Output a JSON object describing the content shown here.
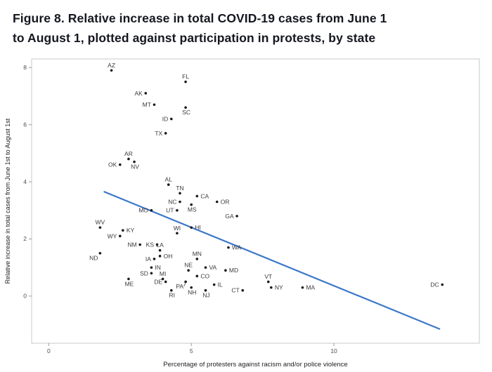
{
  "title": {
    "line1": "Figure 8. Relative increase in total COVID-19 cases from June 1",
    "line2": "to August 1, plotted against participation in protests, by state"
  },
  "chart_data": {
    "type": "scatter",
    "title": "Figure 8. Relative increase in total COVID-19 cases from June 1 to August 1, plotted against participation in protests, by state",
    "xlabel": "Percentage of protesters against racism and/or police violence",
    "ylabel": "Relative increase in total cases from June 1st to August 1st",
    "xlim": [
      -0.6,
      15.1
    ],
    "ylim": [
      -1.65,
      8.3
    ],
    "x_ticks": [
      0,
      5,
      10
    ],
    "y_ticks": [
      0,
      2,
      4,
      6,
      8
    ],
    "grid": false,
    "legend": "none",
    "point_color": "#1a1a1a",
    "label_color": "#3a3a3a",
    "tick_color": "#4d4d4d",
    "axis_title_color": "#222222",
    "panel_border_color": "#c8c8c8",
    "trend_color": "#3b78c8",
    "trend_line": {
      "x1": 1.95,
      "y1": 3.65,
      "x2": 13.7,
      "y2": -1.15
    },
    "points": [
      {
        "state": "AZ",
        "x": 2.2,
        "y": 7.9,
        "anchor": "above"
      },
      {
        "state": "FL",
        "x": 4.8,
        "y": 7.5,
        "anchor": "above"
      },
      {
        "state": "AK",
        "x": 3.4,
        "y": 7.1,
        "anchor": "left"
      },
      {
        "state": "MT",
        "x": 3.7,
        "y": 6.7,
        "anchor": "left"
      },
      {
        "state": "SC",
        "x": 4.8,
        "y": 6.6,
        "anchor": "below"
      },
      {
        "state": "ID",
        "x": 4.3,
        "y": 6.2,
        "anchor": "left"
      },
      {
        "state": "TX",
        "x": 4.1,
        "y": 5.7,
        "anchor": "left"
      },
      {
        "state": "AR",
        "x": 2.8,
        "y": 4.8,
        "anchor": "above"
      },
      {
        "state": "OK",
        "x": 2.5,
        "y": 4.6,
        "anchor": "left"
      },
      {
        "state": "NV",
        "x": 3.0,
        "y": 4.7,
        "anchor": "below"
      },
      {
        "state": "AL",
        "x": 4.2,
        "y": 3.9,
        "anchor": "above"
      },
      {
        "state": "TN",
        "x": 4.6,
        "y": 3.6,
        "anchor": "above"
      },
      {
        "state": "CA",
        "x": 5.2,
        "y": 3.5,
        "anchor": "right"
      },
      {
        "state": "NC",
        "x": 4.6,
        "y": 3.3,
        "anchor": "left"
      },
      {
        "state": "OR",
        "x": 5.9,
        "y": 3.3,
        "anchor": "right"
      },
      {
        "state": "MO",
        "x": 3.6,
        "y": 3.0,
        "anchor": "left"
      },
      {
        "state": "UT",
        "x": 4.5,
        "y": 3.0,
        "anchor": "left"
      },
      {
        "state": "MS",
        "x": 5.0,
        "y": 3.2,
        "anchor": "below"
      },
      {
        "state": "GA",
        "x": 6.6,
        "y": 2.8,
        "anchor": "left"
      },
      {
        "state": "HI",
        "x": 5.0,
        "y": 2.4,
        "anchor": "right"
      },
      {
        "state": "WV",
        "x": 1.8,
        "y": 2.4,
        "anchor": "above"
      },
      {
        "state": "KY",
        "x": 2.6,
        "y": 2.3,
        "anchor": "right"
      },
      {
        "state": "WY",
        "x": 2.5,
        "y": 2.1,
        "anchor": "left"
      },
      {
        "state": "WI",
        "x": 4.5,
        "y": 2.2,
        "anchor": "above"
      },
      {
        "state": "NM",
        "x": 3.2,
        "y": 1.8,
        "anchor": "left"
      },
      {
        "state": "KS",
        "x": 3.8,
        "y": 1.8,
        "anchor": "left"
      },
      {
        "state": "LA",
        "x": 3.9,
        "y": 1.6,
        "anchor": "above"
      },
      {
        "state": "WA",
        "x": 6.3,
        "y": 1.7,
        "anchor": "right"
      },
      {
        "state": "ND",
        "x": 1.8,
        "y": 1.5,
        "anchor": "below-left"
      },
      {
        "state": "OH",
        "x": 3.9,
        "y": 1.4,
        "anchor": "right"
      },
      {
        "state": "IA",
        "x": 3.7,
        "y": 1.3,
        "anchor": "left"
      },
      {
        "state": "MN",
        "x": 5.2,
        "y": 1.3,
        "anchor": "above"
      },
      {
        "state": "IN",
        "x": 3.6,
        "y": 1.0,
        "anchor": "right"
      },
      {
        "state": "VA",
        "x": 5.5,
        "y": 1.0,
        "anchor": "right"
      },
      {
        "state": "NE",
        "x": 4.9,
        "y": 0.9,
        "anchor": "above"
      },
      {
        "state": "MD",
        "x": 6.2,
        "y": 0.9,
        "anchor": "right"
      },
      {
        "state": "SD",
        "x": 3.6,
        "y": 0.8,
        "anchor": "left"
      },
      {
        "state": "MI",
        "x": 4.0,
        "y": 0.6,
        "anchor": "above"
      },
      {
        "state": "DE",
        "x": 4.1,
        "y": 0.5,
        "anchor": "left"
      },
      {
        "state": "CO",
        "x": 5.2,
        "y": 0.7,
        "anchor": "right"
      },
      {
        "state": "ME",
        "x": 2.8,
        "y": 0.6,
        "anchor": "below"
      },
      {
        "state": "PA",
        "x": 4.8,
        "y": 0.5,
        "anchor": "below-left",
        "leader": true
      },
      {
        "state": "IL",
        "x": 5.8,
        "y": 0.4,
        "anchor": "right"
      },
      {
        "state": "VT",
        "x": 7.7,
        "y": 0.5,
        "anchor": "above"
      },
      {
        "state": "NY",
        "x": 7.8,
        "y": 0.3,
        "anchor": "right"
      },
      {
        "state": "RI",
        "x": 4.3,
        "y": 0.2,
        "anchor": "below"
      },
      {
        "state": "NH",
        "x": 5.0,
        "y": 0.3,
        "anchor": "below"
      },
      {
        "state": "NJ",
        "x": 5.5,
        "y": 0.2,
        "anchor": "below"
      },
      {
        "state": "CT",
        "x": 6.8,
        "y": 0.2,
        "anchor": "left"
      },
      {
        "state": "MA",
        "x": 8.9,
        "y": 0.3,
        "anchor": "right"
      },
      {
        "state": "DC",
        "x": 13.8,
        "y": 0.4,
        "anchor": "left"
      }
    ]
  }
}
